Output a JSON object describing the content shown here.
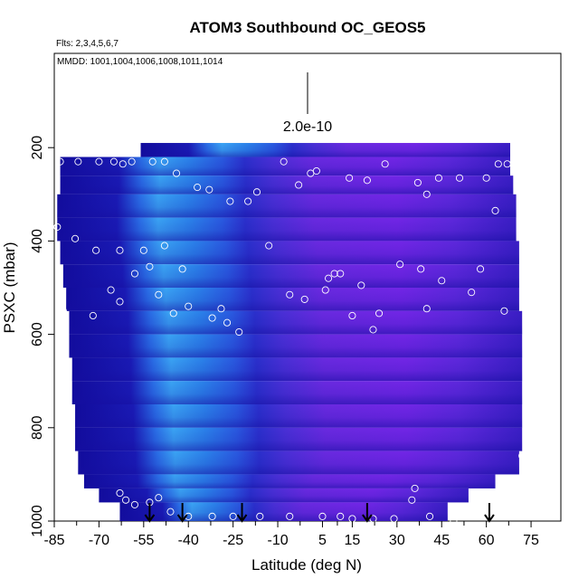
{
  "chart_data": {
    "type": "heatmap",
    "title": "ATOM3 Southbound OC_GEOS5",
    "subtitle_flights": "Flts: 2,3,4,5,6,7",
    "subtitle_dates": "MMDD: 1001,1004,1006,1008,1011,1014",
    "xlabel": "Latitude (deg N)",
    "ylabel": "PSXC (mbar)",
    "x_ticks": [
      "-85",
      "-70",
      "-55",
      "-40",
      "-25",
      "-10",
      "5",
      "15",
      "30",
      "45",
      "60",
      "75"
    ],
    "y_ticks": [
      "200",
      "400",
      "600",
      "800",
      "1000"
    ],
    "xlim": [
      -85,
      85
    ],
    "ylim": [
      1000,
      0
    ],
    "scale_bar_label": "2.0e-10",
    "colors": {
      "low": "#1a14a8",
      "mid": "#3a8af0",
      "high": "#7a28e8",
      "point": "#ffffff",
      "arrow": "#000000"
    },
    "arrows_at_latitude": [
      -53,
      -42,
      -22,
      20,
      61
    ],
    "sample_points": [
      [
        -83,
        230
      ],
      [
        -77,
        230
      ],
      [
        -70,
        230
      ],
      [
        -65,
        230
      ],
      [
        -62,
        235
      ],
      [
        -59,
        230
      ],
      [
        -52,
        230
      ],
      [
        -48,
        230
      ],
      [
        -44,
        255
      ],
      [
        -37,
        285
      ],
      [
        -33,
        290
      ],
      [
        -26,
        315
      ],
      [
        -20,
        315
      ],
      [
        -17,
        295
      ],
      [
        -8,
        230
      ],
      [
        3,
        250
      ],
      [
        1,
        255
      ],
      [
        -3,
        280
      ],
      [
        14,
        265
      ],
      [
        20,
        270
      ],
      [
        26,
        235
      ],
      [
        37,
        275
      ],
      [
        40,
        300
      ],
      [
        44,
        265
      ],
      [
        51,
        265
      ],
      [
        60,
        265
      ],
      [
        64,
        235
      ],
      [
        67,
        235
      ],
      [
        70,
        235
      ],
      [
        63,
        335
      ],
      [
        73,
        390
      ],
      [
        -84,
        370
      ],
      [
        -78,
        395
      ],
      [
        -71,
        420
      ],
      [
        -63,
        420
      ],
      [
        -55,
        420
      ],
      [
        -48,
        410
      ],
      [
        -42,
        460
      ],
      [
        -53,
        455
      ],
      [
        -58,
        470
      ],
      [
        -66,
        505
      ],
      [
        -72,
        560
      ],
      [
        -82,
        550
      ],
      [
        -63,
        530
      ],
      [
        -50,
        515
      ],
      [
        -45,
        555
      ],
      [
        -40,
        540
      ],
      [
        -32,
        565
      ],
      [
        -27,
        575
      ],
      [
        -23,
        595
      ],
      [
        -29,
        545
      ],
      [
        -13,
        410
      ],
      [
        -6,
        515
      ],
      [
        -1,
        525
      ],
      [
        6,
        505
      ],
      [
        7,
        480
      ],
      [
        9,
        470
      ],
      [
        11,
        470
      ],
      [
        18,
        495
      ],
      [
        24,
        555
      ],
      [
        22,
        590
      ],
      [
        15,
        560
      ],
      [
        31,
        450
      ],
      [
        38,
        460
      ],
      [
        40,
        545
      ],
      [
        45,
        485
      ],
      [
        55,
        510
      ],
      [
        58,
        460
      ],
      [
        66,
        550
      ],
      [
        -83,
        880
      ],
      [
        -63,
        940
      ],
      [
        -61,
        955
      ],
      [
        -58,
        965
      ],
      [
        -53,
        960
      ],
      [
        -50,
        950
      ],
      [
        -46,
        980
      ],
      [
        -40,
        990
      ],
      [
        -32,
        990
      ],
      [
        -25,
        990
      ],
      [
        -16,
        990
      ],
      [
        -6,
        990
      ],
      [
        5,
        990
      ],
      [
        11,
        990
      ],
      [
        15,
        995
      ],
      [
        22,
        995
      ],
      [
        29,
        995
      ],
      [
        36,
        930
      ],
      [
        35,
        955
      ],
      [
        41,
        990
      ],
      [
        49,
        1000
      ],
      [
        58,
        960
      ],
      [
        72,
        860
      ],
      [
        74,
        885
      ]
    ]
  }
}
